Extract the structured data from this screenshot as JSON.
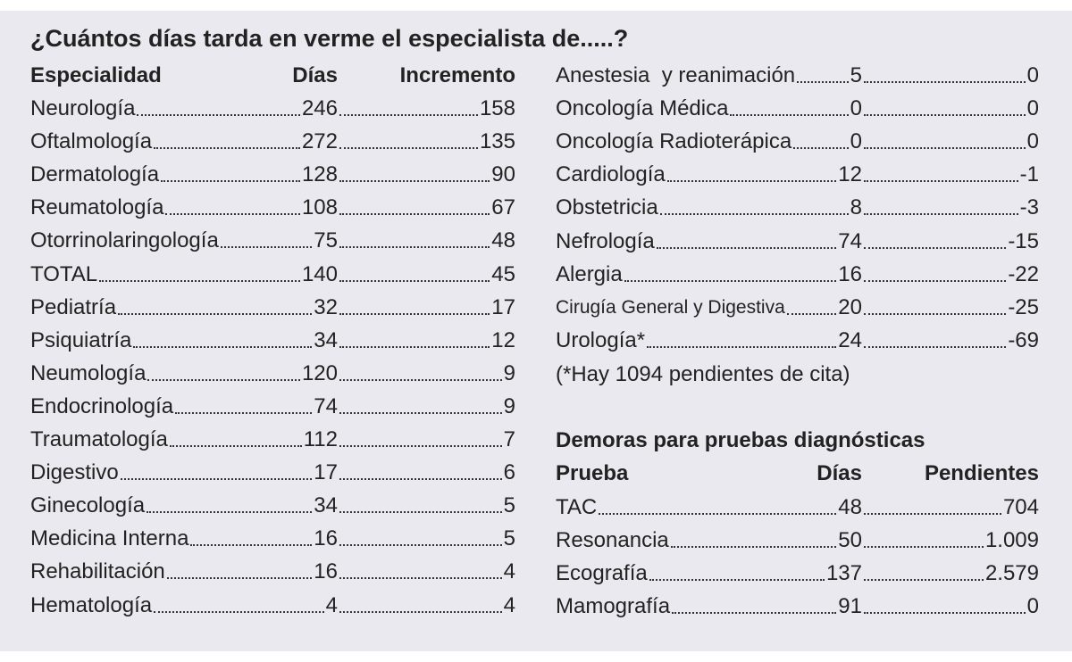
{
  "title": "¿Cuántos días tarda en verme el especialista de.....?",
  "specialties": {
    "header": [
      "Especialidad",
      "Días",
      "Incremento"
    ],
    "rows": [
      [
        "Neurología",
        "246",
        "158"
      ],
      [
        "Oftalmología",
        "272",
        "135"
      ],
      [
        "Dermatología",
        "128",
        "90"
      ],
      [
        "Reumatología",
        "108",
        "67"
      ],
      [
        "Otorrinolaringología",
        "75",
        "48"
      ],
      [
        "TOTAL",
        "140",
        "45"
      ],
      [
        "Pediatría",
        "32",
        "17"
      ],
      [
        "Psiquiatría",
        "34",
        "12"
      ],
      [
        "Neumología",
        "120",
        "9"
      ],
      [
        "Endocrinología",
        "74",
        "9"
      ],
      [
        "Traumatología",
        "112",
        "7"
      ],
      [
        "Digestivo",
        "17",
        "6"
      ],
      [
        "Ginecología",
        "34",
        "5"
      ],
      [
        "Medicina Interna",
        "16",
        "5"
      ],
      [
        "Rehabilitación",
        "16",
        "4"
      ],
      [
        "Hematología",
        "4",
        "4"
      ],
      [
        "Anestesia  y reanimación",
        "5",
        "0"
      ],
      [
        "Oncología Médica",
        "0",
        "0"
      ],
      [
        "Oncología Radioterápica",
        "0",
        "0"
      ],
      [
        "Cardiología",
        "12",
        "-1"
      ],
      [
        "Obstetricia",
        "8",
        "-3"
      ],
      [
        "Nefrología",
        "74",
        "-15"
      ],
      [
        "Alergia",
        "16",
        "-22"
      ],
      [
        "Cirugía General y Digestiva",
        "20",
        "-25"
      ],
      [
        "Urología*",
        "24",
        "-69"
      ]
    ]
  },
  "note": "(*Hay 1094 pendientes de cita)",
  "tests": {
    "title": "Demoras para pruebas diagnósticas",
    "header": [
      "Prueba",
      "Días",
      "Pendientes"
    ],
    "rows": [
      [
        "TAC",
        "48",
        "704"
      ],
      [
        "Resonancia",
        "50",
        "1.009"
      ],
      [
        "Ecografía",
        "137",
        "2.579"
      ],
      [
        "Mamografía",
        "91",
        "0"
      ]
    ]
  }
}
